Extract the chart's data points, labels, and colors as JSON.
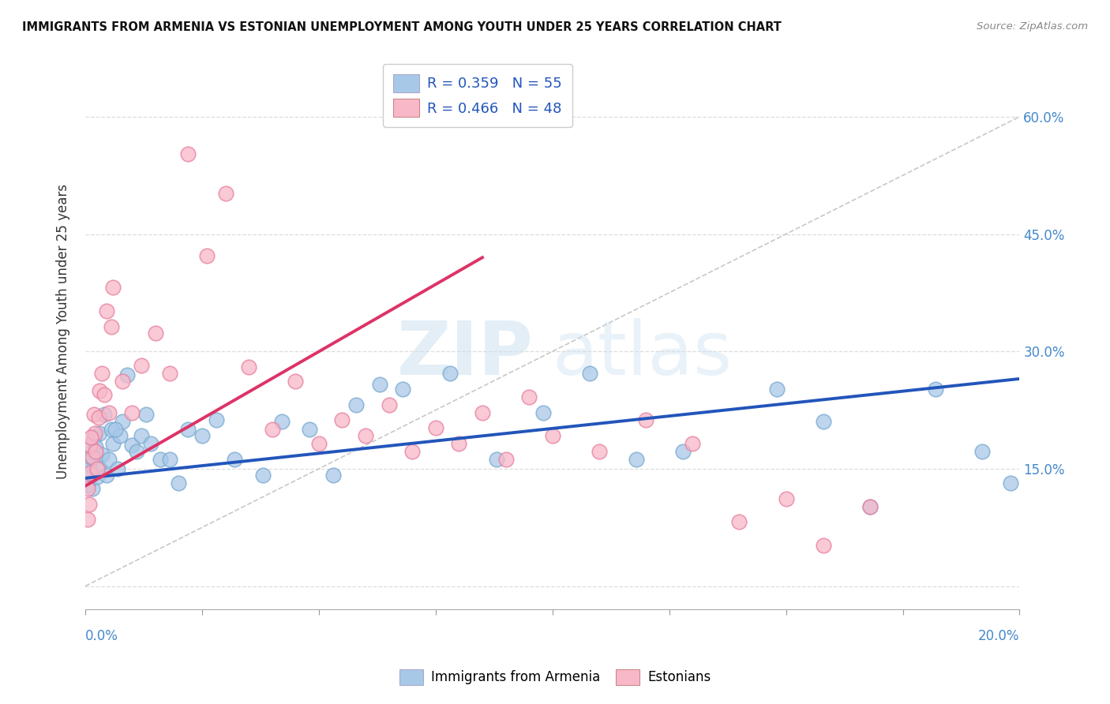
{
  "title": "IMMIGRANTS FROM ARMENIA VS ESTONIAN UNEMPLOYMENT AMONG YOUTH UNDER 25 YEARS CORRELATION CHART",
  "source": "Source: ZipAtlas.com",
  "ylabel": "Unemployment Among Youth under 25 years",
  "legend_blue_label": "Immigrants from Armenia",
  "legend_pink_label": "Estonians",
  "legend_blue_r": "R = 0.359",
  "legend_blue_n": "N = 55",
  "legend_pink_r": "R = 0.466",
  "legend_pink_n": "N = 48",
  "xlim": [
    0.0,
    0.2
  ],
  "ylim": [
    -0.03,
    0.68
  ],
  "yticks": [
    0.0,
    0.15,
    0.3,
    0.45,
    0.6
  ],
  "ytick_labels": [
    "",
    "15.0%",
    "30.0%",
    "45.0%",
    "60.0%"
  ],
  "blue_scatter_x": [
    0.0005,
    0.001,
    0.0008,
    0.0015,
    0.001,
    0.0005,
    0.002,
    0.0018,
    0.0012,
    0.0025,
    0.003,
    0.0028,
    0.0022,
    0.004,
    0.0035,
    0.005,
    0.0045,
    0.006,
    0.0055,
    0.007,
    0.008,
    0.0075,
    0.009,
    0.01,
    0.0065,
    0.011,
    0.013,
    0.012,
    0.014,
    0.016,
    0.018,
    0.02,
    0.022,
    0.025,
    0.028,
    0.032,
    0.038,
    0.042,
    0.048,
    0.053,
    0.058,
    0.063,
    0.068,
    0.078,
    0.088,
    0.098,
    0.108,
    0.118,
    0.128,
    0.148,
    0.158,
    0.168,
    0.182,
    0.192,
    0.198
  ],
  "blue_scatter_y": [
    0.145,
    0.16,
    0.175,
    0.125,
    0.155,
    0.13,
    0.17,
    0.19,
    0.165,
    0.14,
    0.195,
    0.152,
    0.178,
    0.22,
    0.168,
    0.162,
    0.142,
    0.182,
    0.2,
    0.15,
    0.21,
    0.192,
    0.27,
    0.18,
    0.2,
    0.172,
    0.22,
    0.192,
    0.182,
    0.162,
    0.162,
    0.132,
    0.2,
    0.192,
    0.212,
    0.162,
    0.142,
    0.21,
    0.2,
    0.142,
    0.232,
    0.258,
    0.252,
    0.272,
    0.162,
    0.222,
    0.272,
    0.162,
    0.172,
    0.252,
    0.21,
    0.102,
    0.252,
    0.172,
    0.132
  ],
  "pink_scatter_x": [
    0.0005,
    0.001,
    0.0008,
    0.0015,
    0.001,
    0.0005,
    0.002,
    0.0018,
    0.0012,
    0.0025,
    0.003,
    0.0028,
    0.0022,
    0.004,
    0.0035,
    0.005,
    0.0045,
    0.006,
    0.0055,
    0.008,
    0.01,
    0.012,
    0.015,
    0.018,
    0.022,
    0.026,
    0.03,
    0.035,
    0.04,
    0.045,
    0.05,
    0.055,
    0.06,
    0.065,
    0.07,
    0.075,
    0.08,
    0.085,
    0.09,
    0.095,
    0.1,
    0.11,
    0.12,
    0.13,
    0.14,
    0.15,
    0.158,
    0.168
  ],
  "pink_scatter_y": [
    0.125,
    0.145,
    0.105,
    0.165,
    0.18,
    0.085,
    0.195,
    0.22,
    0.19,
    0.15,
    0.25,
    0.215,
    0.172,
    0.245,
    0.272,
    0.222,
    0.352,
    0.382,
    0.332,
    0.262,
    0.222,
    0.282,
    0.323,
    0.272,
    0.552,
    0.422,
    0.502,
    0.28,
    0.2,
    0.262,
    0.182,
    0.212,
    0.192,
    0.232,
    0.172,
    0.202,
    0.182,
    0.222,
    0.162,
    0.242,
    0.192,
    0.172,
    0.212,
    0.182,
    0.082,
    0.112,
    0.052,
    0.102
  ],
  "blue_line_x": [
    0.0,
    0.2
  ],
  "blue_line_y": [
    0.138,
    0.265
  ],
  "pink_line_x": [
    0.0,
    0.085
  ],
  "pink_line_y": [
    0.128,
    0.42
  ],
  "diag_line_x": [
    0.0,
    0.2
  ],
  "diag_line_y": [
    0.0,
    0.6
  ],
  "blue_color": "#a8c8e8",
  "blue_edge_color": "#7aaad0",
  "pink_color": "#f8b8c8",
  "pink_edge_color": "#e880a0",
  "blue_line_color": "#2255bb",
  "pink_line_color": "#dd3366",
  "diag_color": "#c8c8c8",
  "watermark_zip": "ZIP",
  "watermark_atlas": "atlas",
  "background_color": "#ffffff",
  "grid_color": "#dddddd"
}
